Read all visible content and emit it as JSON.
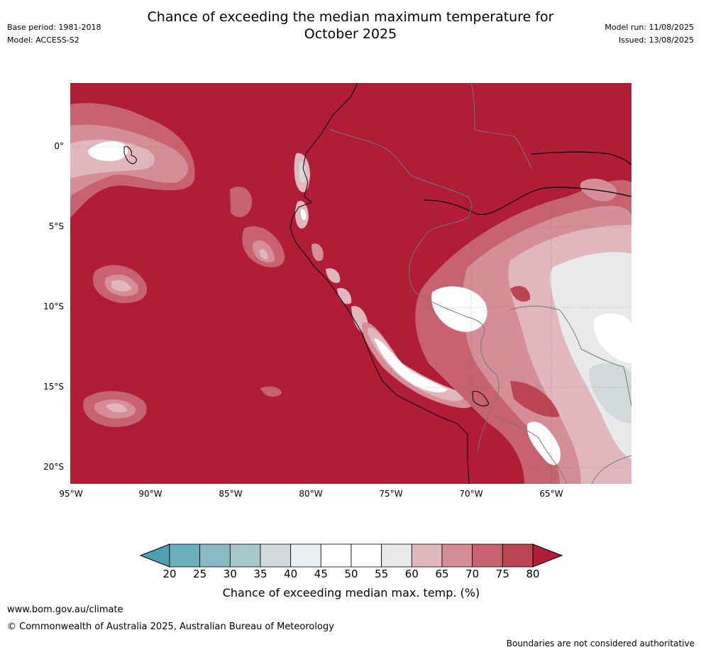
{
  "header": {
    "title_line1": "Chance of exceeding the median maximum temperature for",
    "title_line2": "October 2025",
    "base_period": "Base period: 1981-2018",
    "model": "Model: ACCESS-S2",
    "model_run": "Model run: 11/08/2025",
    "issued": "Issued: 13/08/2025"
  },
  "map": {
    "lat_labels": [
      "0°",
      "5°S",
      "10°S",
      "15°S",
      "20°S"
    ],
    "lon_labels": [
      "95°W",
      "90°W",
      "85°W",
      "80°W",
      "75°W",
      "70°W",
      "65°W"
    ],
    "background_color": "#b11c37"
  },
  "colorbar": {
    "ticks": [
      "20",
      "25",
      "30",
      "35",
      "40",
      "45",
      "50",
      "55",
      "60",
      "65",
      "70",
      "75",
      "80"
    ],
    "colors": [
      "#4f9fb0",
      "#6aaebb",
      "#8ab8c4",
      "#a8c7cc",
      "#d2d9db",
      "#e9eef0",
      "#ffffff",
      "#ffffff",
      "#e9e9e9",
      "#e0b7bd",
      "#d58d97",
      "#c6636f",
      "#bb4652",
      "#b11c37"
    ],
    "label": "Chance of exceeding median max. temp. (%)"
  },
  "footer": {
    "website": "www.bom.gov.au/climate",
    "copyright": "© Commonwealth of Australia 2025, Australian Bureau of Meteorology",
    "disclaimer": "Boundaries are not considered authoritative"
  }
}
